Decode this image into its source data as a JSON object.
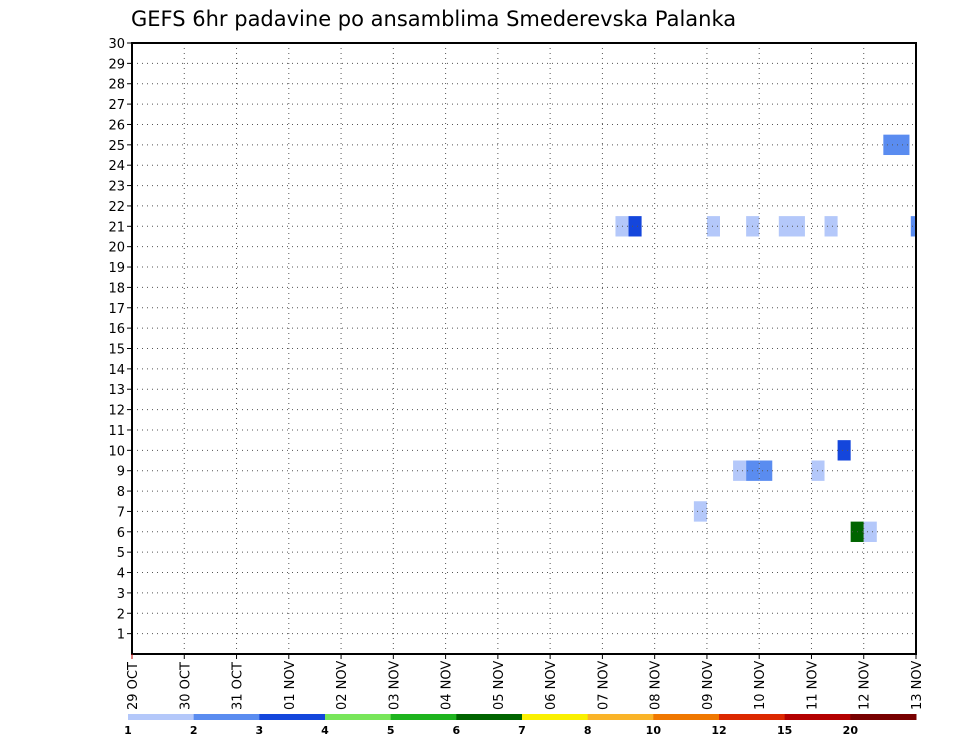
{
  "chart_data": {
    "type": "heatmap",
    "title": "GEFS 6hr padavine po ansamblima Smederevska Palanka",
    "xlabel": "",
    "ylabel": "",
    "y_ticks": [
      "1",
      "2",
      "3",
      "4",
      "5",
      "6",
      "7",
      "8",
      "9",
      "10",
      "11",
      "12",
      "13",
      "14",
      "15",
      "16",
      "17",
      "18",
      "19",
      "20",
      "21",
      "22",
      "23",
      "24",
      "25",
      "26",
      "27",
      "28",
      "29",
      "30"
    ],
    "x_ticks": [
      "29 OCT",
      "30 OCT",
      "31 OCT",
      "01 NOV",
      "02 NOV",
      "03 NOV",
      "04 NOV",
      "05 NOV",
      "06 NOV",
      "07 NOV",
      "08 NOV",
      "09 NOV",
      "10 NOV",
      "11 NOV",
      "12 NOV",
      "13 NOV"
    ],
    "x_range_days": [
      0,
      15
    ],
    "y_range": [
      0,
      30
    ],
    "grid": true,
    "cells": [
      {
        "member": 21,
        "day": 9.375,
        "width_days": 0.25,
        "bin": 1
      },
      {
        "member": 21,
        "day": 9.625,
        "width_days": 0.25,
        "bin": 3
      },
      {
        "member": 21,
        "day": 11.125,
        "width_days": 0.25,
        "bin": 1
      },
      {
        "member": 21,
        "day": 11.875,
        "width_days": 0.25,
        "bin": 1
      },
      {
        "member": 21,
        "day": 12.625,
        "width_days": 0.5,
        "bin": 1
      },
      {
        "member": 21,
        "day": 13.375,
        "width_days": 0.25,
        "bin": 1
      },
      {
        "member": 21,
        "day": 14.95,
        "width_days": 0.1,
        "bin": 2
      },
      {
        "member": 25,
        "day": 14.625,
        "width_days": 0.5,
        "bin": 2
      },
      {
        "member": 9,
        "day": 11.625,
        "width_days": 0.25,
        "bin": 1
      },
      {
        "member": 9,
        "day": 11.875,
        "width_days": 0.25,
        "bin": 2
      },
      {
        "member": 9,
        "day": 12.125,
        "width_days": 0.25,
        "bin": 2
      },
      {
        "member": 9,
        "day": 13.125,
        "width_days": 0.25,
        "bin": 1
      },
      {
        "member": 10,
        "day": 13.625,
        "width_days": 0.25,
        "bin": 3
      },
      {
        "member": 7,
        "day": 10.875,
        "width_days": 0.25,
        "bin": 1
      },
      {
        "member": 6,
        "day": 13.875,
        "width_days": 0.25,
        "bin": 6
      },
      {
        "member": 6,
        "day": 14.125,
        "width_days": 0.25,
        "bin": 1
      }
    ],
    "legend": {
      "labels": [
        "1",
        "2",
        "3",
        "4",
        "5",
        "6",
        "7",
        "8",
        "10",
        "12",
        "15",
        "20"
      ],
      "colors": [
        "#b4c8fa",
        "#5a8cf0",
        "#1446dc",
        "#78e65a",
        "#1eb41e",
        "#006400",
        "#faf000",
        "#fab428",
        "#f07800",
        "#dc2800",
        "#b40000",
        "#780000"
      ]
    }
  }
}
